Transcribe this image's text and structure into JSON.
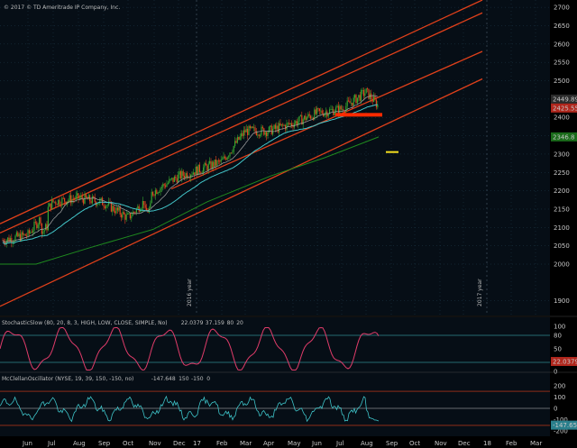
{
  "header": {
    "copyright": "© 2017 © TD Ameritrade IP Company, Inc."
  },
  "colors": {
    "background": "#000000",
    "panel_bg": "#060e16",
    "grid": "#1e3a4a",
    "candle_up": "#35a52f",
    "candle_down": "#e2431d",
    "channel": "#e0401a",
    "ma_cyan": "#43c6c9",
    "ma_green": "#1f8a1f",
    "ma_gray": "#a6a6a6",
    "stoch": "#e03c6a",
    "mcclellan": "#3ec3c8",
    "highlight_red": "#ff2a00",
    "highlight_yellow": "#f5df1f"
  },
  "chart_data": [
    {
      "type": "candlestick",
      "symbol_panel": "price",
      "xlabels": [
        "Jun",
        "Jul",
        "Aug",
        "Sep",
        "Oct",
        "Nov",
        "Dec",
        "Feb",
        "Mar",
        "Apr",
        "May",
        "Jun",
        "Jul",
        "Aug",
        "Sep",
        "Oct",
        "Nov",
        "Dec",
        "Feb",
        "Mar"
      ],
      "year_markers": [
        "17",
        "18"
      ],
      "watermarks": [
        "2016 year",
        "2017 year"
      ],
      "yticks": [
        1900,
        2000,
        2050,
        2100,
        2150,
        2200,
        2250,
        2300,
        2350,
        2400,
        2450,
        2500,
        2550,
        2600,
        2650,
        2700
      ],
      "ylim": [
        1860,
        2720
      ],
      "price_labels": [
        {
          "value": "2449.89",
          "color": "#2b2b2b"
        },
        {
          "value": "2425.55",
          "color": "#b0261c"
        },
        {
          "value": "2346.8",
          "color": "#1a6b1a"
        }
      ],
      "series_hint": "Daily candles with moving averages and a rising parallel channel",
      "monthly_close": [
        {
          "x": "Jun 2016",
          "y": 2080
        },
        {
          "x": "Jul 2016",
          "y": 2170
        },
        {
          "x": "Aug 2016",
          "y": 2180
        },
        {
          "x": "Sep 2016",
          "y": 2168
        },
        {
          "x": "Oct 2016",
          "y": 2126
        },
        {
          "x": "Nov 2016",
          "y": 2199
        },
        {
          "x": "Dec 2016",
          "y": 2239
        },
        {
          "x": "Jan 2017",
          "y": 2279
        },
        {
          "x": "Feb 2017",
          "y": 2363
        },
        {
          "x": "Mar 2017",
          "y": 2363
        },
        {
          "x": "Apr 2017",
          "y": 2384
        },
        {
          "x": "May 2017",
          "y": 2412
        },
        {
          "x": "Jun 2017",
          "y": 2423
        },
        {
          "x": "Jul 2017",
          "y": 2470
        },
        {
          "x": "Aug 2017",
          "y": 2430
        }
      ]
    },
    {
      "type": "line",
      "panel": "stochastic",
      "legend": [
        {
          "text": "StochasticSlow (80, 20, 8, 3, HIGH, LOW, CLOSE, SIMPLE, No)",
          "color": "#e03c6a"
        },
        {
          "text": "22.0379",
          "color": "#e03c6a"
        },
        {
          "text": "37.159",
          "color": "#b07ad6"
        },
        {
          "text": "80",
          "color": "#43c6c9"
        },
        {
          "text": "20",
          "color": "#43c6c9"
        }
      ],
      "yticks": [
        0,
        20,
        50,
        80,
        100
      ],
      "ylim": [
        0,
        100
      ],
      "levels": [
        80,
        20
      ],
      "last_value": "22.0379"
    },
    {
      "type": "line",
      "panel": "mcclellan",
      "legend": [
        {
          "text": "McClellanOscillator (NYSE, 19, 39, 150, -150, no)",
          "color": "#3ec3c8"
        },
        {
          "text": "-147.648",
          "color": "#3ec3c8"
        },
        {
          "text": "150",
          "color": "#e0401a"
        },
        {
          "text": "-150",
          "color": "#e0401a"
        },
        {
          "text": "0",
          "color": "#c8c8c8"
        }
      ],
      "yticks": [
        -200,
        -100,
        0,
        100,
        200
      ],
      "ylim": [
        -230,
        230
      ],
      "levels": [
        150,
        0,
        -150
      ],
      "last_value": "-147.65"
    }
  ]
}
